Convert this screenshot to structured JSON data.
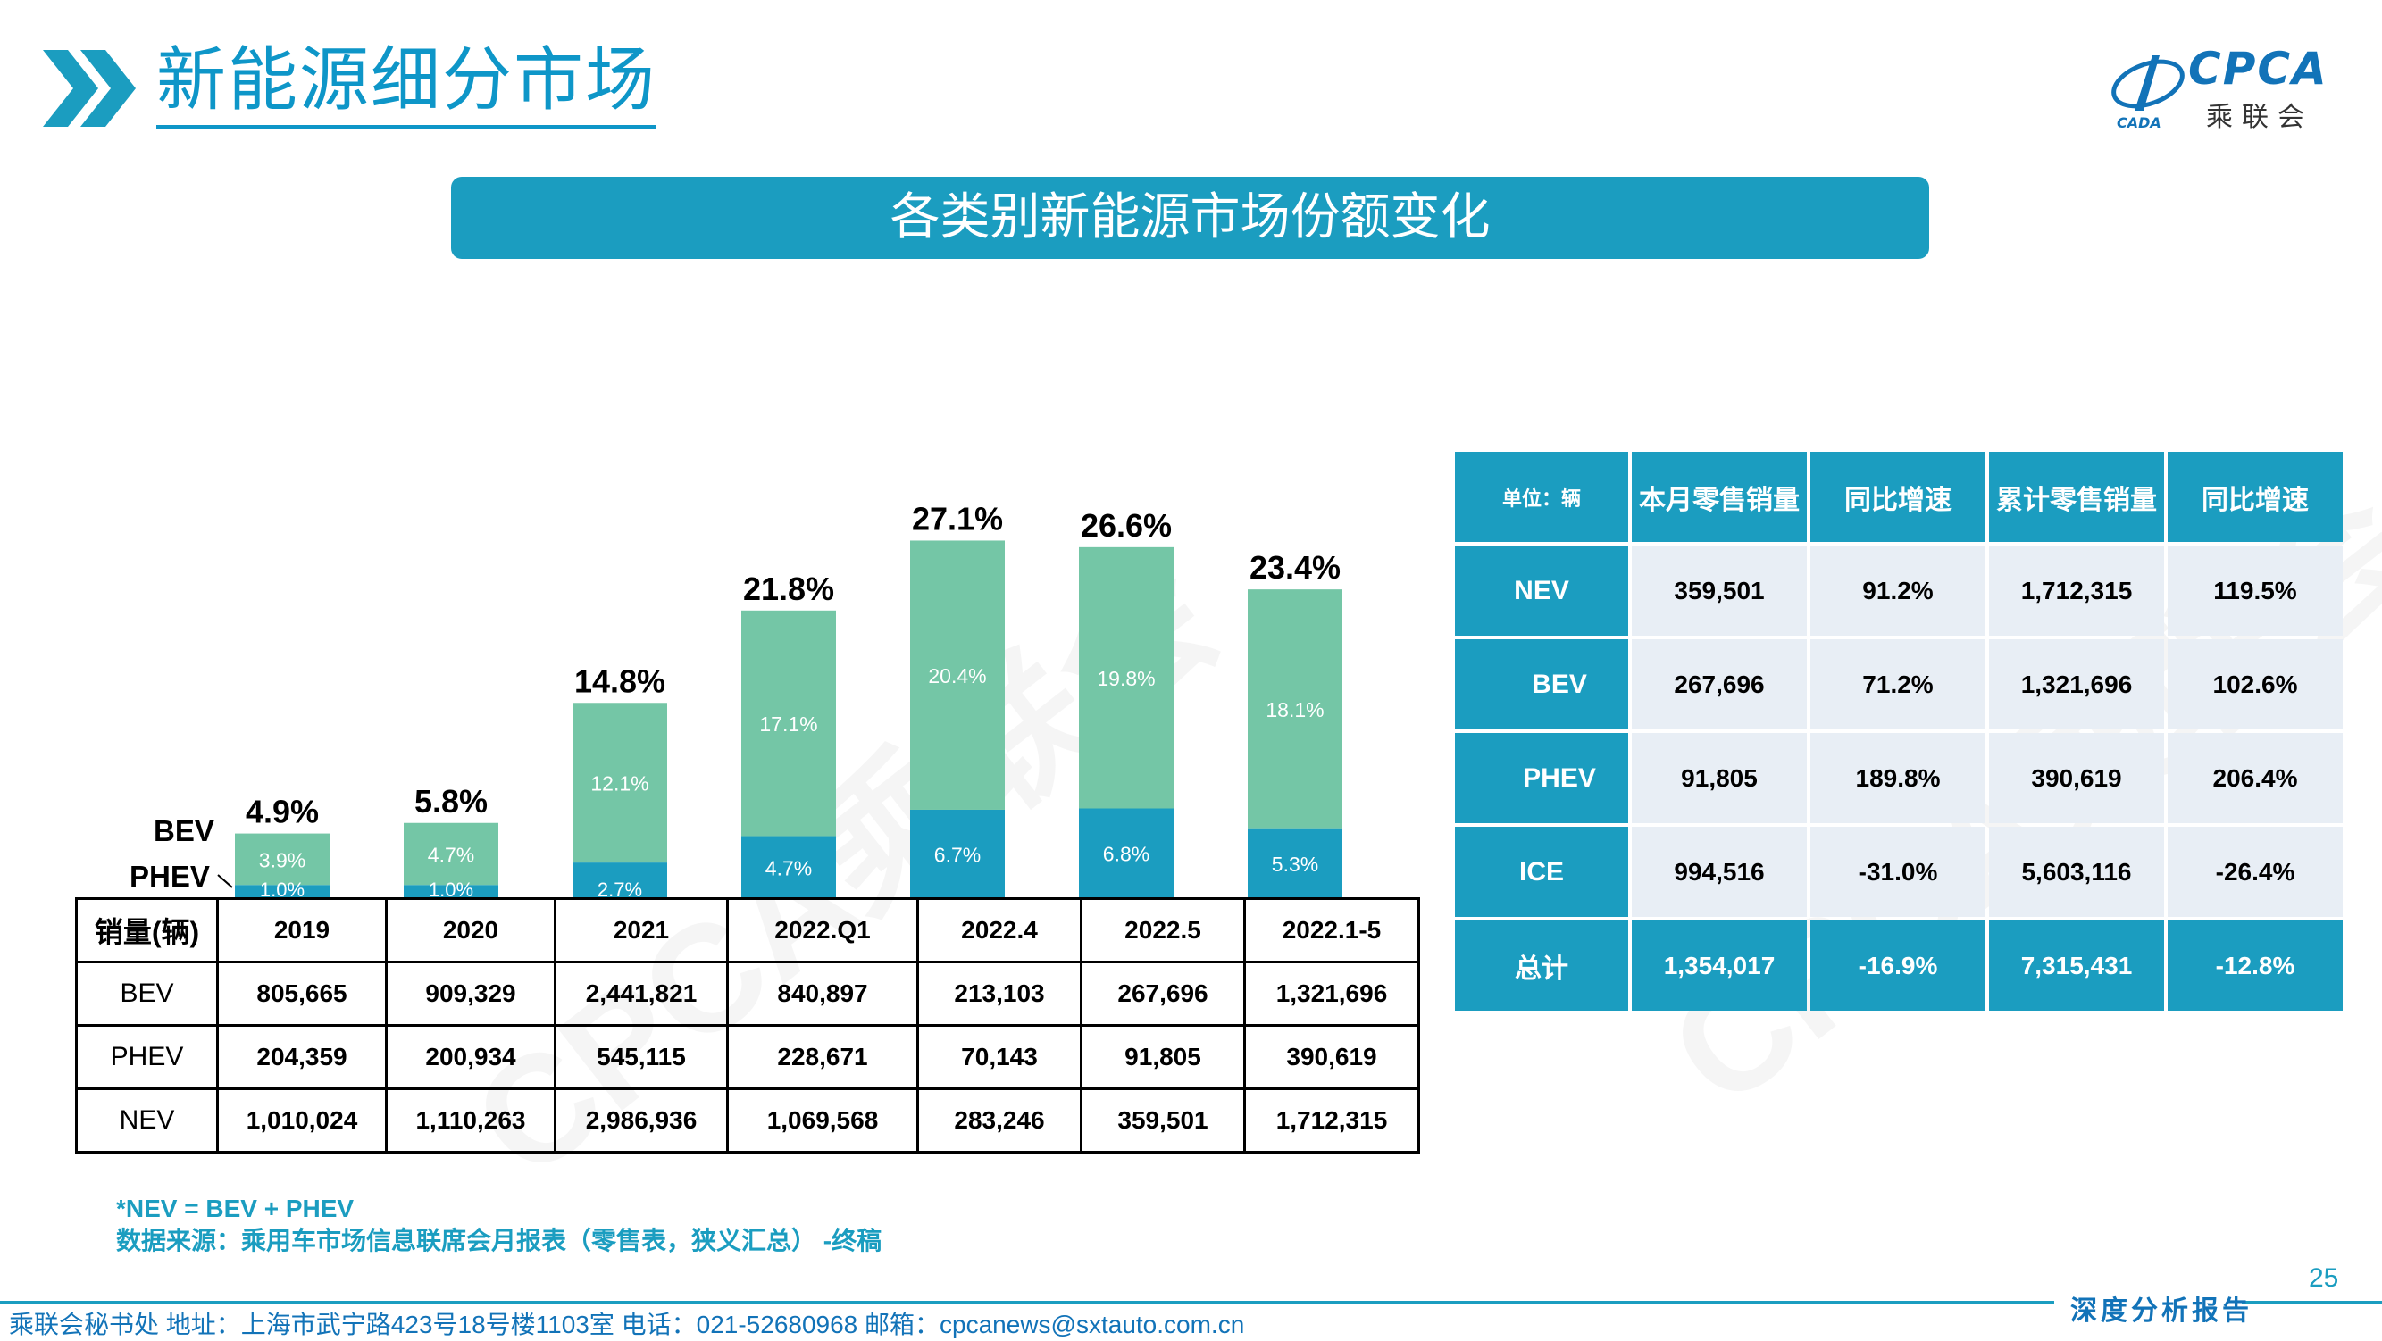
{
  "header": {
    "title": "新能源细分市场",
    "logo_text": "CPCA",
    "logo_sub": "乘联会",
    "logo_small": "CADA"
  },
  "banner": {
    "title": "各类别新能源市场份额变化"
  },
  "colors": {
    "bev": "#74c6a6",
    "phev": "#1b9dc0",
    "accent": "#1b9dc0"
  },
  "chart_data": {
    "type": "bar",
    "stacked": true,
    "categories": [
      "2019",
      "2020",
      "2021",
      "2022.Q1",
      "2022.4",
      "2022.5",
      "2022.1-5"
    ],
    "series": [
      {
        "name": "PHEV",
        "values": [
          1.0,
          1.0,
          2.7,
          4.7,
          6.7,
          6.8,
          5.3
        ],
        "labels": [
          "1.0%",
          "1.0%",
          "2.7%",
          "4.7%",
          "6.7%",
          "6.8%",
          "5.3%"
        ]
      },
      {
        "name": "BEV",
        "values": [
          3.9,
          4.7,
          12.1,
          17.1,
          20.4,
          19.8,
          18.1
        ],
        "labels": [
          "3.9%",
          "4.7%",
          "12.1%",
          "17.1%",
          "20.4%",
          "19.8%",
          "18.1%"
        ]
      }
    ],
    "totals": [
      "4.9%",
      "5.8%",
      "14.8%",
      "21.8%",
      "27.1%",
      "26.6%",
      "23.4%"
    ],
    "total_values": [
      4.9,
      5.8,
      14.8,
      21.8,
      27.1,
      26.6,
      23.4
    ],
    "legend": [
      "BEV",
      "PHEV"
    ],
    "ylim": [
      0,
      30
    ]
  },
  "sales_table": {
    "corner": "销量(辆)",
    "columns": [
      "2019",
      "2020",
      "2021",
      "2022.Q1",
      "2022.4",
      "2022.5",
      "2022.1-5"
    ],
    "rows": [
      {
        "label": "BEV",
        "values": [
          "805,665",
          "909,329",
          "2,441,821",
          "840,897",
          "213,103",
          "267,696",
          "1,321,696"
        ]
      },
      {
        "label": "PHEV",
        "values": [
          "204,359",
          "200,934",
          "545,115",
          "228,671",
          "70,143",
          "91,805",
          "390,619"
        ]
      },
      {
        "label": "NEV",
        "values": [
          "1,010,024",
          "1,110,263",
          "2,986,936",
          "1,069,568",
          "283,246",
          "359,501",
          "1,712,315"
        ]
      }
    ]
  },
  "retail_table": {
    "headers": [
      "单位：辆",
      "本月零售销量",
      "同比增速",
      "累计零售销量",
      "同比增速"
    ],
    "rows": [
      {
        "label": "NEV",
        "values": [
          "359,501",
          "91.2%",
          "1,712,315",
          "119.5%"
        ]
      },
      {
        "label": "BEV",
        "values": [
          "267,696",
          "71.2%",
          "1,321,696",
          "102.6%"
        ]
      },
      {
        "label": "PHEV",
        "values": [
          "91,805",
          "189.8%",
          "390,619",
          "206.4%"
        ]
      },
      {
        "label": "ICE",
        "values": [
          "994,516",
          "-31.0%",
          "5,603,116",
          "-26.4%"
        ]
      },
      {
        "label": "总计",
        "values": [
          "1,354,017",
          "-16.9%",
          "7,315,431",
          "-12.8%"
        ]
      }
    ]
  },
  "notes": {
    "line1": "*NEV = BEV + PHEV",
    "line2": "数据来源：乘用车市场信息联席会月报表（零售表，狭义汇总） -终稿"
  },
  "page_number": "25",
  "footer": {
    "text": "乘联会秘书处   地址：上海市武宁路423号18号楼1103室  电话：021-52680968   邮箱：cpcanews@sxtauto.com.cn",
    "tag": "深度分析报告"
  },
  "watermark": "CPCA乘联会"
}
